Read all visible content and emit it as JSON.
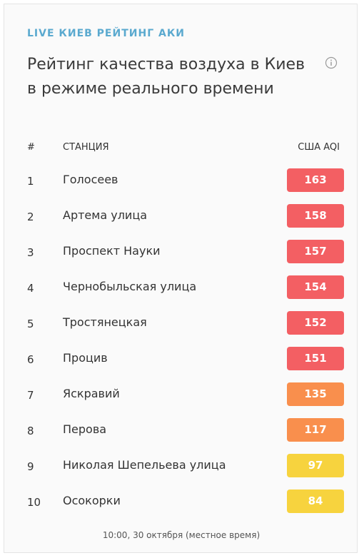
{
  "header": {
    "eyebrow": "LIVE КИЕВ РЕЙТИНГ АКИ",
    "title": "Рейтинг качества воздуха в Киев в режиме реального времени",
    "info_icon": "info-circle-icon"
  },
  "table": {
    "columns": {
      "rank": "#",
      "station": "СТАНЦИЯ",
      "aqi": "США AQI"
    },
    "rows": [
      {
        "rank": "1",
        "station": "Голосеев",
        "aqi": "163",
        "color": "#f35f63"
      },
      {
        "rank": "2",
        "station": "Артема улица",
        "aqi": "158",
        "color": "#f35f63"
      },
      {
        "rank": "3",
        "station": "Проспект Науки",
        "aqi": "157",
        "color": "#f35f63"
      },
      {
        "rank": "4",
        "station": "Чернобыльская улица",
        "aqi": "154",
        "color": "#f35f63"
      },
      {
        "rank": "5",
        "station": "Тростянецкая",
        "aqi": "152",
        "color": "#f35f63"
      },
      {
        "rank": "6",
        "station": "Процив",
        "aqi": "151",
        "color": "#f35f63"
      },
      {
        "rank": "7",
        "station": "Яскравий",
        "aqi": "135",
        "color": "#f98f4d"
      },
      {
        "rank": "8",
        "station": "Перова",
        "aqi": "117",
        "color": "#f98f4d"
      },
      {
        "rank": "9",
        "station": "Николая Шепельева улица",
        "aqi": "97",
        "color": "#f7d33e"
      },
      {
        "rank": "10",
        "station": "Осокорки",
        "aqi": "84",
        "color": "#f7d33e"
      }
    ]
  },
  "footer": {
    "timestamp": "10:00, 30 октября (местное время)"
  }
}
